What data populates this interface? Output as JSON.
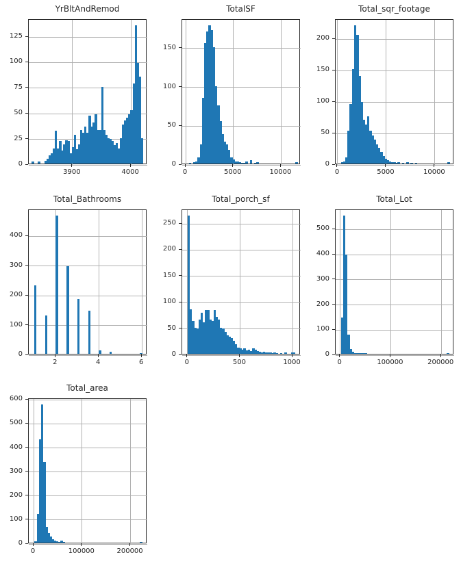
{
  "figure": {
    "bar_color": "#1f77b4",
    "grid_color": "#b0b0b0",
    "spine_color": "#2b2b2b",
    "text_color": "#262626",
    "background": "#ffffff"
  },
  "chart_data": "see charts",
  "charts": [
    {
      "type": "bar",
      "title": "YrBltAndRemod",
      "xticks": [
        3900,
        4000
      ],
      "yticks": [
        0,
        25,
        50,
        75,
        100,
        125
      ],
      "xlim": [
        3825,
        4028
      ],
      "ylim": [
        0,
        141.8
      ],
      "grid": true,
      "bin_start": 3830,
      "bin_width": 3.6,
      "values": [
        2,
        0,
        0,
        2,
        0,
        0,
        3,
        5,
        8,
        10,
        15,
        32,
        15,
        22,
        13,
        19,
        23,
        22,
        10,
        16,
        28,
        14,
        19,
        33,
        30,
        36,
        30,
        47,
        36,
        40,
        48,
        33,
        33,
        75,
        33,
        28,
        25,
        24,
        22,
        18,
        20,
        15,
        25,
        38,
        42,
        45,
        48,
        52,
        78,
        135,
        98,
        85,
        25
      ]
    },
    {
      "type": "bar",
      "title": "TotalSF",
      "xticks": [
        0,
        5000,
        10000
      ],
      "yticks": [
        0,
        50,
        100,
        150
      ],
      "xlim": [
        -360,
        12050
      ],
      "ylim": [
        0,
        186.9
      ],
      "grid": true,
      "bin_start": 330,
      "bin_width": 228,
      "values": [
        1,
        0,
        2,
        3,
        8,
        25,
        85,
        155,
        170,
        178,
        172,
        150,
        100,
        75,
        55,
        38,
        28,
        25,
        18,
        8,
        5,
        3,
        3,
        2,
        1,
        1,
        3,
        0,
        4,
        0,
        1,
        2,
        0,
        0,
        0,
        0,
        0,
        0,
        0,
        0,
        0,
        0,
        0,
        0,
        0,
        0,
        0,
        0,
        0,
        2
      ]
    },
    {
      "type": "bar",
      "title": "Total_sqr_footage",
      "xticks": [
        0,
        5000,
        10000
      ],
      "yticks": [
        0,
        50,
        100,
        150,
        200
      ],
      "xlim": [
        -211,
        11980
      ],
      "ylim": [
        0,
        231
      ],
      "grid": true,
      "bin_start": 334,
      "bin_width": 224,
      "values": [
        2,
        3,
        10,
        52,
        95,
        150,
        220,
        205,
        140,
        98,
        70,
        62,
        75,
        52,
        45,
        38,
        30,
        25,
        18,
        12,
        8,
        5,
        3,
        2,
        2,
        1,
        2,
        0,
        1,
        0,
        2,
        0,
        1,
        0,
        1,
        0,
        0,
        0,
        0,
        0,
        0,
        0,
        0,
        0,
        0,
        0,
        0,
        0,
        0,
        2
      ]
    },
    {
      "type": "bar",
      "title": "Total_Bathrooms",
      "xticks": [
        2,
        4,
        6
      ],
      "yticks": [
        0,
        100,
        200,
        300,
        400
      ],
      "xlim": [
        0.75,
        6.25
      ],
      "ylim": [
        0,
        488.3
      ],
      "grid": true,
      "bin_start": 1.0,
      "bin_width": 0.1,
      "values": [
        230,
        0,
        0,
        0,
        0,
        130,
        0,
        0,
        0,
        0,
        465,
        0,
        0,
        0,
        0,
        295,
        0,
        0,
        0,
        0,
        185,
        0,
        0,
        0,
        0,
        145,
        0,
        0,
        0,
        0,
        12,
        0,
        0,
        0,
        0,
        8,
        0,
        0,
        0,
        0,
        0,
        0,
        0,
        0,
        0,
        0,
        0,
        0,
        0,
        2
      ]
    },
    {
      "type": "bar",
      "title": "Total_porch_sf",
      "xticks": [
        0,
        500,
        1000
      ],
      "yticks": [
        0,
        50,
        100,
        150,
        200,
        250
      ],
      "xlim": [
        -51,
        1078
      ],
      "ylim": [
        0,
        276.2
      ],
      "grid": true,
      "bin_start": 0,
      "bin_width": 20.5,
      "values": [
        263,
        85,
        62,
        50,
        48,
        65,
        78,
        60,
        83,
        83,
        65,
        62,
        83,
        70,
        65,
        50,
        48,
        42,
        35,
        32,
        30,
        25,
        18,
        12,
        10,
        8,
        10,
        6,
        8,
        5,
        10,
        8,
        5,
        4,
        3,
        4,
        2,
        3,
        2,
        1,
        2,
        1,
        0,
        1,
        0,
        2,
        0,
        0,
        3,
        2
      ]
    },
    {
      "type": "bar",
      "title": "Total_Lot",
      "xticks": [
        0,
        100000,
        200000
      ],
      "yticks": [
        0,
        100,
        200,
        300,
        400,
        500
      ],
      "xlim": [
        -9000,
        225500
      ],
      "ylim": [
        0,
        577.5
      ],
      "grid": true,
      "bin_start": 1300,
      "bin_width": 4280,
      "values": [
        145,
        550,
        395,
        75,
        20,
        8,
        4,
        2,
        3,
        4,
        3,
        4,
        0,
        0,
        0,
        0,
        0,
        0,
        0,
        0,
        0,
        0,
        0,
        0,
        0,
        0,
        0,
        0,
        0,
        0,
        0,
        0,
        0,
        0,
        0,
        0,
        0,
        0,
        0,
        0,
        0,
        0,
        0,
        0,
        0,
        0,
        0,
        0,
        0,
        1
      ]
    },
    {
      "type": "bar",
      "title": "Total_area",
      "xticks": [
        0,
        100000,
        200000
      ],
      "yticks": [
        0,
        100,
        200,
        300,
        400,
        500,
        600
      ],
      "xlim": [
        -10000,
        234500
      ],
      "ylim": [
        0,
        603.8
      ],
      "grid": true,
      "bin_start": 2000,
      "bin_width": 4430,
      "values": [
        5,
        120,
        430,
        575,
        335,
        65,
        40,
        25,
        15,
        10,
        6,
        4,
        8,
        2,
        0,
        0,
        0,
        0,
        0,
        0,
        0,
        0,
        0,
        0,
        0,
        0,
        0,
        0,
        0,
        0,
        0,
        0,
        0,
        0,
        0,
        0,
        0,
        0,
        0,
        0,
        0,
        0,
        0,
        0,
        0,
        0,
        0,
        0,
        0,
        1
      ]
    }
  ]
}
